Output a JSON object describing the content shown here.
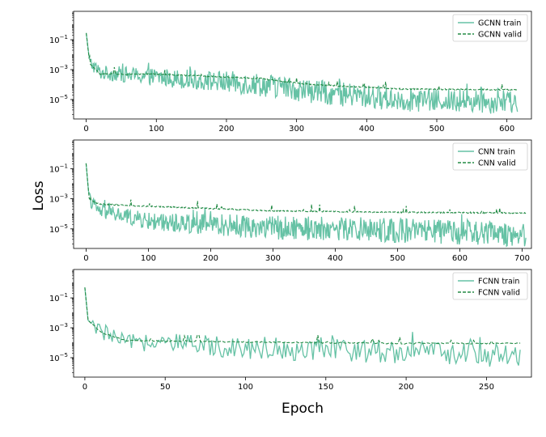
{
  "figure": {
    "ylabel": "Loss",
    "xlabel": "Epoch"
  },
  "chart_data": [
    {
      "type": "line",
      "yscale": "log",
      "xlim": [
        -18,
        635
      ],
      "ylim_exp": [
        -6.3,
        0.9
      ],
      "xticks": [
        0,
        100,
        200,
        300,
        400,
        500,
        600
      ],
      "yticks_exp": [
        -5,
        -3,
        -1
      ],
      "legend_position": "top-right",
      "n_epochs": 616,
      "series": [
        {
          "name": "GCNN train",
          "style": "solid",
          "color": "#66c2a5",
          "key_log_values": [
            [
              0,
              -0.55
            ],
            [
              5,
              -2.5
            ],
            [
              20,
              -3.2
            ],
            [
              100,
              -3.5
            ],
            [
              250,
              -4.0
            ],
            [
              350,
              -4.6
            ],
            [
              450,
              -5.0
            ],
            [
              615,
              -5.2
            ]
          ]
        },
        {
          "name": "GCNN valid",
          "style": "dashed",
          "color": "#238b45",
          "key_log_values": [
            [
              0,
              -0.55
            ],
            [
              5,
              -2.6
            ],
            [
              20,
              -3.3
            ],
            [
              100,
              -3.3
            ],
            [
              250,
              -3.6
            ],
            [
              320,
              -4.0
            ],
            [
              450,
              -4.3
            ],
            [
              615,
              -4.35
            ]
          ]
        }
      ]
    },
    {
      "type": "line",
      "yscale": "log",
      "xlim": [
        -20,
        715
      ],
      "ylim_exp": [
        -6.3,
        0.9
      ],
      "xticks": [
        0,
        100,
        200,
        300,
        400,
        500,
        600,
        700
      ],
      "yticks_exp": [
        -5,
        -3,
        -1
      ],
      "legend_position": "top-right",
      "n_epochs": 707,
      "series": [
        {
          "name": "CNN train",
          "style": "solid",
          "color": "#66c2a5",
          "key_log_values": [
            [
              0,
              -0.65
            ],
            [
              5,
              -3.0
            ],
            [
              20,
              -3.8
            ],
            [
              100,
              -4.5
            ],
            [
              300,
              -4.9
            ],
            [
              500,
              -5.1
            ],
            [
              707,
              -5.4
            ]
          ]
        },
        {
          "name": "CNN valid",
          "style": "dashed",
          "color": "#238b45",
          "key_log_values": [
            [
              0,
              -0.65
            ],
            [
              5,
              -3.0
            ],
            [
              20,
              -3.35
            ],
            [
              100,
              -3.5
            ],
            [
              300,
              -3.8
            ],
            [
              500,
              -3.9
            ],
            [
              707,
              -3.95
            ]
          ]
        }
      ]
    },
    {
      "type": "line",
      "yscale": "log",
      "xlim": [
        -7,
        278
      ],
      "ylim_exp": [
        -6.3,
        0.9
      ],
      "xticks": [
        0,
        50,
        100,
        150,
        200,
        250
      ],
      "yticks_exp": [
        -5,
        -3,
        -1
      ],
      "legend_position": "top-right",
      "n_epochs": 272,
      "series": [
        {
          "name": "FCNN train",
          "style": "solid",
          "color": "#66c2a5",
          "key_log_values": [
            [
              0,
              -0.3
            ],
            [
              2,
              -2.5
            ],
            [
              10,
              -3.3
            ],
            [
              25,
              -3.95
            ],
            [
              100,
              -4.3
            ],
            [
              200,
              -4.6
            ],
            [
              272,
              -4.9
            ]
          ]
        },
        {
          "name": "FCNN valid",
          "style": "dashed",
          "color": "#238b45",
          "key_log_values": [
            [
              0,
              -0.3
            ],
            [
              2,
              -2.5
            ],
            [
              10,
              -3.3
            ],
            [
              25,
              -3.85
            ],
            [
              100,
              -3.95
            ],
            [
              200,
              -4.05
            ],
            [
              272,
              -4.05
            ]
          ]
        }
      ]
    }
  ]
}
